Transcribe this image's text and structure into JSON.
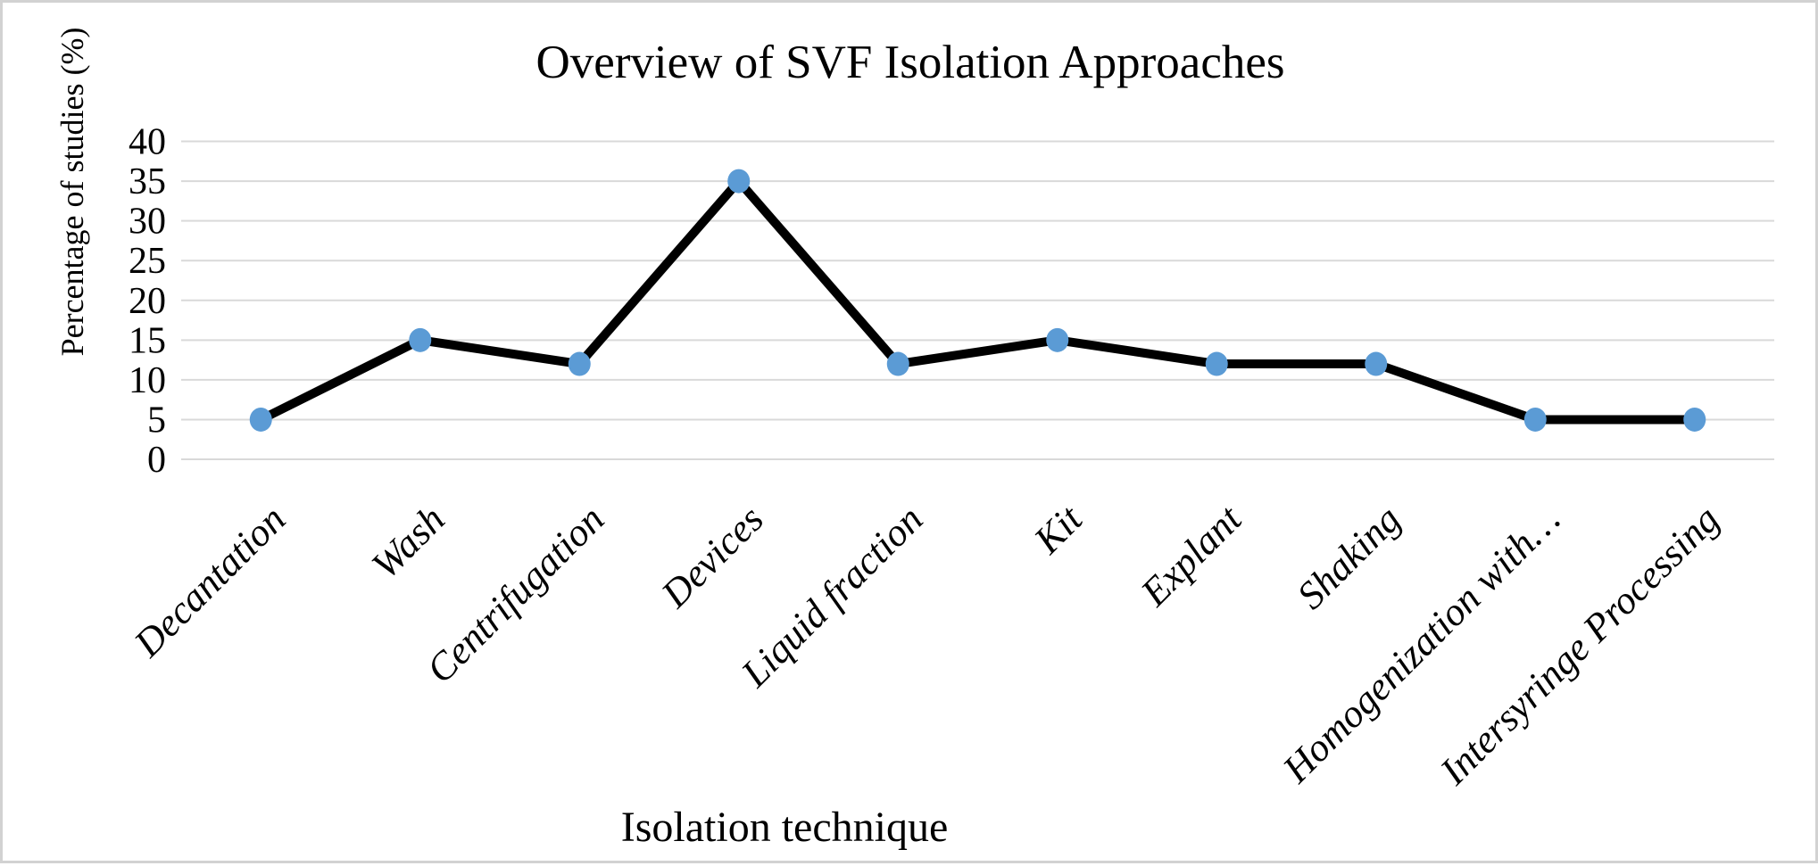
{
  "figure": {
    "border_color": "#d2d2d2",
    "background": "#ffffff"
  },
  "chart_data": {
    "type": "line",
    "title": "Overview of SVF Isolation Approaches",
    "xlabel": "Isolation technique",
    "ylabel": "Percentage of studies (%)",
    "categories": [
      "Decantation",
      "Wash",
      "Centrifugation",
      "Devices",
      "Liquid fraction",
      "Kit",
      "Explant",
      "Shaking",
      "Homogenization with…",
      "Intersyringe Processing"
    ],
    "values": [
      5,
      15,
      12,
      35,
      12,
      15,
      12,
      12,
      5,
      5
    ],
    "ylim": [
      0,
      40
    ],
    "ytick_step": 5,
    "yticks": [
      0,
      5,
      10,
      15,
      20,
      25,
      30,
      35,
      40
    ],
    "grid": true,
    "legend_position": "none",
    "line_color": "#000000",
    "marker_color": "#5B9BD5",
    "gridline_color": "#D9D9D9"
  }
}
